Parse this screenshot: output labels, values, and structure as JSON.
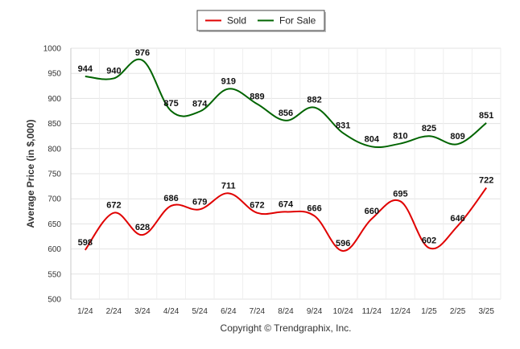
{
  "chart_data": {
    "type": "line",
    "categories": [
      "1/24",
      "2/24",
      "3/24",
      "4/24",
      "5/24",
      "6/24",
      "7/24",
      "8/24",
      "9/24",
      "10/24",
      "11/24",
      "12/24",
      "1/25",
      "2/25",
      "3/25"
    ],
    "series": [
      {
        "name": "Sold",
        "color": "#e00000",
        "values": [
          598,
          672,
          628,
          686,
          679,
          711,
          672,
          674,
          666,
          596,
          660,
          695,
          602,
          646,
          722
        ]
      },
      {
        "name": "For Sale",
        "color": "#006400",
        "values": [
          944,
          940,
          976,
          875,
          874,
          919,
          889,
          856,
          882,
          831,
          804,
          810,
          825,
          809,
          851
        ]
      }
    ],
    "ylabel": "Average Price (in $,000)",
    "ylim": [
      500,
      1000
    ],
    "yticks": [
      "500",
      "550",
      "600",
      "650",
      "700",
      "750",
      "800",
      "850",
      "900",
      "950",
      "1000"
    ],
    "grid": true,
    "legend_position": "top-center",
    "footer": "Copyright © Trendgraphix, Inc."
  }
}
